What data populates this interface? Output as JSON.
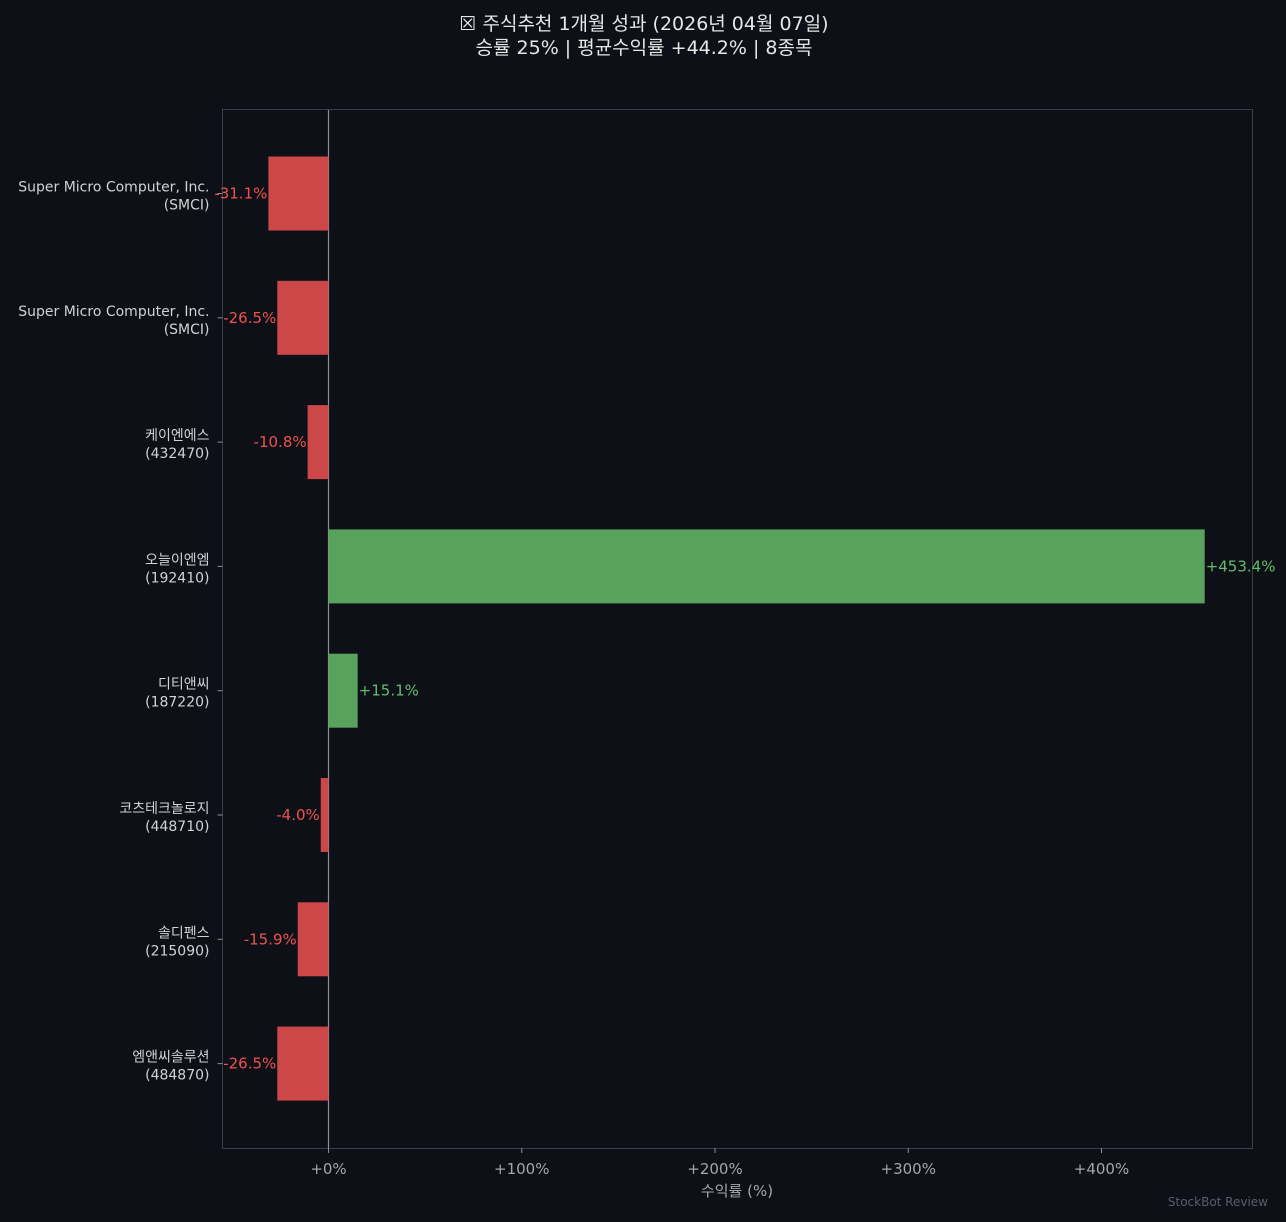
{
  "chart_data": {
    "type": "bar",
    "orientation": "horizontal",
    "title": "☒ 주식추천 1개월 성과  (2026년 04월 07일)",
    "subtitle": "승률 25%  |  평균수익률 +44.2%  |  8종목",
    "xlabel": "수익률 (%)",
    "ylabel": "",
    "xlim": [
      -55,
      480
    ],
    "xticks": [
      0,
      100,
      200,
      300,
      400
    ],
    "xtick_labels": [
      "+0%",
      "+100%",
      "+200%",
      "+300%",
      "+400%"
    ],
    "grid": false,
    "categories": [
      [
        "Super Micro Computer, Inc.",
        "(SMCI)"
      ],
      [
        "Super Micro Computer, Inc.",
        "(SMCI)"
      ],
      [
        "케이엔에스",
        "(432470)"
      ],
      [
        "오늘이엔엠",
        "(192410)"
      ],
      [
        "디티앤씨",
        "(187220)"
      ],
      [
        "코츠테크놀로지",
        "(448710)"
      ],
      [
        "솔디펜스",
        "(215090)"
      ],
      [
        "엠앤씨솔루션",
        "(484870)"
      ]
    ],
    "values": [
      -31.1,
      -26.5,
      -10.8,
      453.4,
      15.1,
      -4.0,
      -15.9,
      -26.5
    ],
    "value_labels": [
      "-31.1%",
      "-26.5%",
      "-10.8%",
      "+453.4%",
      "+15.1%",
      "-4.0%",
      "-15.9%",
      "-26.5%"
    ],
    "colors": {
      "positive_bar": "#59a25e",
      "negative_bar": "#cc4848",
      "positive_label": "#62be6a",
      "negative_label": "#f0514f",
      "background": "#0d1017",
      "frame": "#3a3e46",
      "zero_line": "#8b8e94"
    },
    "watermark": "StockBot Review"
  }
}
